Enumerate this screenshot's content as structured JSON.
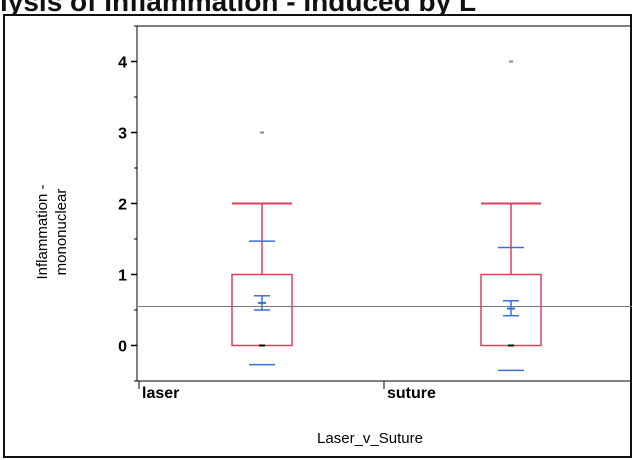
{
  "title": "lysis of Inflammation - Induced by L",
  "chart_data": {
    "type": "box",
    "title": "lysis of Inflammation - Induced by L",
    "xlabel": "Laser_v_Suture",
    "ylabel_lines": [
      "Inflammation -",
      "mononuclear"
    ],
    "ylim": [
      -0.5,
      4.5
    ],
    "yticks": [
      0,
      1,
      2,
      3,
      4
    ],
    "categories": [
      "laser",
      "suture"
    ],
    "grand_mean": 0.55,
    "groups": [
      {
        "category": "laser",
        "whisker_low": 0,
        "q1": 0,
        "median": 0,
        "q3": 1,
        "whisker_high": 2,
        "outliers": [
          3
        ],
        "mean": 0.6,
        "mean_ci": [
          0.5,
          0.7
        ],
        "sd_range": [
          -0.27,
          1.47
        ]
      },
      {
        "category": "suture",
        "whisker_low": 0,
        "q1": 0,
        "median": 0,
        "q3": 1,
        "whisker_high": 2,
        "outliers": [
          4
        ],
        "mean": 0.52,
        "mean_ci": [
          0.42,
          0.63
        ],
        "sd_range": [
          -0.35,
          1.38
        ]
      }
    ],
    "colors": {
      "box": "#e0405a",
      "mean": "#3a6fd8",
      "median": "#000000",
      "grand_mean_line": "#777777",
      "outlier": "#888888"
    }
  }
}
